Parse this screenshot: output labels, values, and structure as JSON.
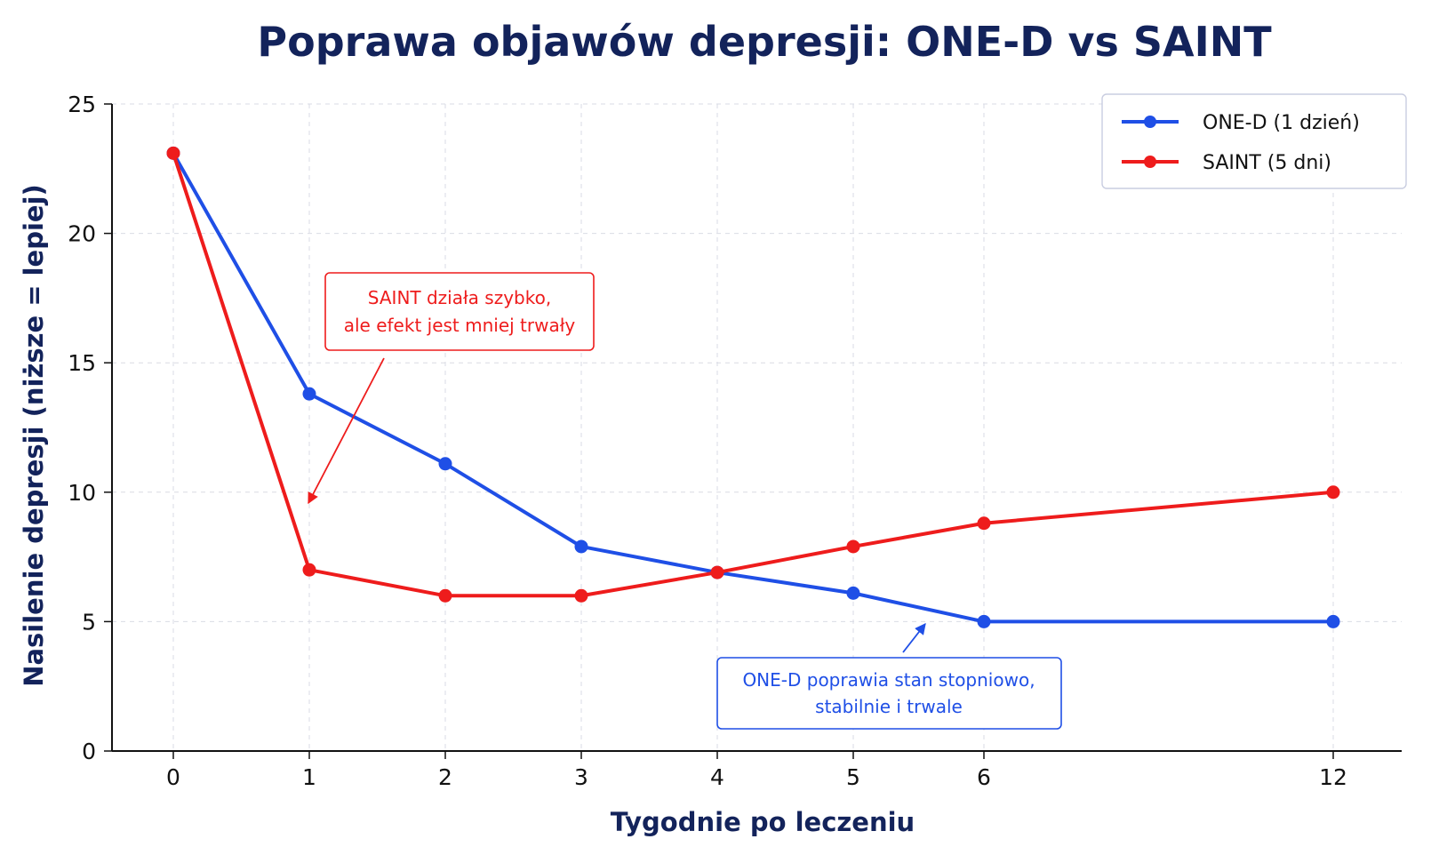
{
  "chart_data": {
    "type": "line",
    "title": "Poprawa objawów depresji: ONE-D vs SAINT",
    "xlabel": "Tygodnie po leczeniu",
    "ylabel": "Nasilenie depresji (niższe = lepiej)",
    "x_ticks": [
      "0",
      "1",
      "2",
      "3",
      "4",
      "5",
      "6",
      "12"
    ],
    "y_ticks": [
      "0",
      "5",
      "10",
      "15",
      "20",
      "25"
    ],
    "ylim": [
      0,
      25
    ],
    "grid": true,
    "legend_position": "top-right",
    "x": [
      0,
      1,
      2,
      3,
      4,
      5,
      6,
      12
    ],
    "series": [
      {
        "name": "ONE-D (1 dzień)",
        "color": "#1f4fe6",
        "values": [
          23.1,
          13.8,
          11.1,
          7.9,
          6.9,
          6.1,
          5.0,
          5.0
        ]
      },
      {
        "name": "SAINT (5 dni)",
        "color": "#ee1c1c",
        "values": [
          23.1,
          7.0,
          6.0,
          6.0,
          6.9,
          7.9,
          8.8,
          10.0
        ]
      }
    ],
    "annotations": [
      {
        "lines": [
          "SAINT działa szybko,",
          "ale efekt jest mniej trwały"
        ],
        "color": "#ee1c1c"
      },
      {
        "lines": [
          "ONE-D poprawia stan stopniowo,",
          "stabilnie i trwale"
        ],
        "color": "#1f4fe6"
      }
    ]
  }
}
